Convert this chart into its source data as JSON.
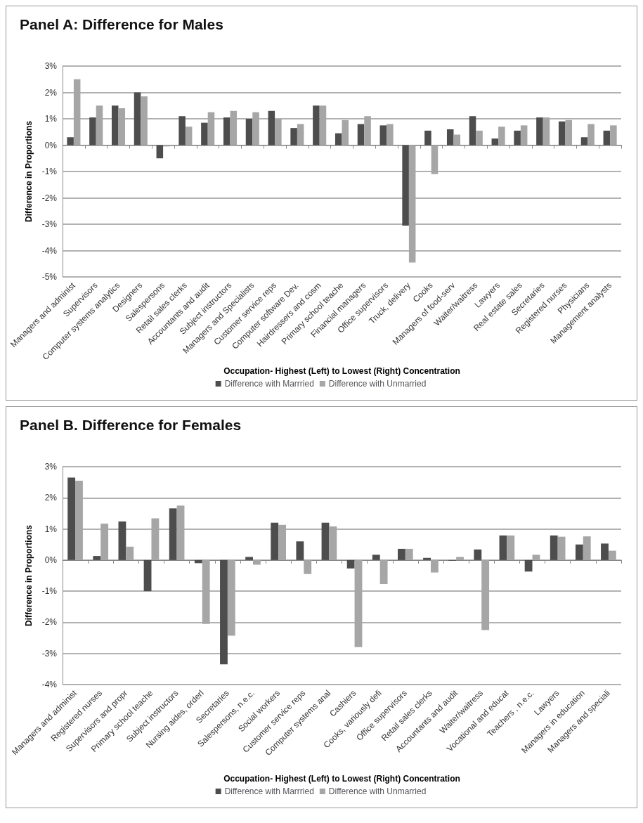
{
  "chart_data": [
    {
      "type": "bar",
      "title": "Panel A: Difference for Males",
      "xlabel": "Occupation- Highest (Left) to Lowest (Right) Concentration",
      "ylabel": "Difference in Proportions",
      "categories": [
        "Managers and administ",
        "Supervisors",
        "Computer systems analytics",
        "Designers",
        "Salespersons",
        "Retail sales clerks",
        "Accountants and audit",
        "Subject instructors",
        "Managers and Specialists",
        "Customer service reps",
        "Computer software Dev.",
        "Hairdressers and cosm",
        "Primary school teache",
        "Financial managers",
        "Office supervisors",
        "Truck, delivery",
        "Cooks",
        "Managers of food-serv",
        "Waiter/waitress",
        "Lawyers",
        "Real estate sales",
        "Secretaries",
        "Registered nurses",
        "Physicians",
        "Management analysts"
      ],
      "series": [
        {
          "name": "Difference with Marrried",
          "color": "#4d4d4d",
          "values": [
            0.3,
            1.05,
            1.5,
            2.0,
            -0.5,
            1.1,
            0.85,
            1.05,
            1.0,
            1.3,
            0.65,
            1.5,
            0.45,
            0.8,
            0.75,
            -3.05,
            0.55,
            0.6,
            1.1,
            0.25,
            0.55,
            1.05,
            0.9,
            0.3,
            0.55
          ]
        },
        {
          "name": "Difference with Unmarried",
          "color": "#a6a6a6",
          "values": [
            2.5,
            1.5,
            1.4,
            1.85,
            -0.05,
            0.7,
            1.25,
            1.3,
            1.25,
            1.0,
            0.8,
            1.5,
            0.95,
            1.1,
            0.8,
            -4.45,
            -1.1,
            0.4,
            0.55,
            0.7,
            0.75,
            1.05,
            0.95,
            0.8,
            0.75
          ]
        }
      ],
      "ylim": [
        -5,
        3
      ],
      "yticks": [
        {
          "value": -5,
          "label": "-5%"
        },
        {
          "value": -4,
          "label": "-4%"
        },
        {
          "value": -3,
          "label": "-3%"
        },
        {
          "value": -2,
          "label": "-2%"
        },
        {
          "value": -1,
          "label": "-1%"
        },
        {
          "value": 0,
          "label": "0%"
        },
        {
          "value": 1,
          "label": "1%"
        },
        {
          "value": 2,
          "label": "2%"
        },
        {
          "value": 3,
          "label": "3%"
        }
      ],
      "grid": "y",
      "legend": "bottom"
    },
    {
      "type": "bar",
      "title": "Panel B. Difference for Females",
      "xlabel": "Occupation- Highest (Left) to Lowest (Right) Concentration",
      "ylabel": "Difference in Proportions",
      "categories": [
        "Managers and administ",
        "Registered nurses",
        "Supervisors and propr",
        "Primary school teache",
        "Subject instructors",
        "Nursing aides, orderl",
        "Secretaries",
        "Salespersons, n.e.c.",
        "Social workers",
        "Customer service reps",
        "Computer systems anal",
        "Cashiers",
        "Cooks, variously defi",
        "Office supervisors",
        "Retail sales clerks",
        "Accountants and audit",
        "Waiter/waitress",
        "Vocational and educat",
        "Teachers , n.e.c.",
        "Lawyers",
        "Managers in education",
        "Managers and speciali"
      ],
      "series": [
        {
          "name": "Difference with Marrried",
          "color": "#4d4d4d",
          "values": [
            2.65,
            0.13,
            1.24,
            -1.0,
            1.66,
            -0.1,
            -3.35,
            0.1,
            1.2,
            0.6,
            1.2,
            -0.27,
            0.17,
            0.36,
            0.07,
            -0.02,
            0.34,
            0.79,
            -0.37,
            0.79,
            0.5,
            0.53
          ]
        },
        {
          "name": "Difference with Unmarried",
          "color": "#a6a6a6",
          "values": [
            2.55,
            1.17,
            0.43,
            1.34,
            1.75,
            -2.05,
            -2.43,
            -0.15,
            1.13,
            -0.45,
            1.08,
            -2.8,
            -0.77,
            0.36,
            -0.4,
            0.1,
            -2.25,
            0.79,
            0.17,
            0.75,
            0.76,
            0.3
          ]
        }
      ],
      "ylim": [
        -4,
        3
      ],
      "yticks": [
        {
          "value": -4,
          "label": "-4%"
        },
        {
          "value": -3,
          "label": "-3%"
        },
        {
          "value": -2,
          "label": "-2%"
        },
        {
          "value": -1,
          "label": "-1%"
        },
        {
          "value": 0,
          "label": "0%"
        },
        {
          "value": 1,
          "label": "1%"
        },
        {
          "value": 2,
          "label": "2%"
        },
        {
          "value": 3,
          "label": "3%"
        }
      ],
      "grid": "y",
      "legend": "bottom"
    }
  ]
}
